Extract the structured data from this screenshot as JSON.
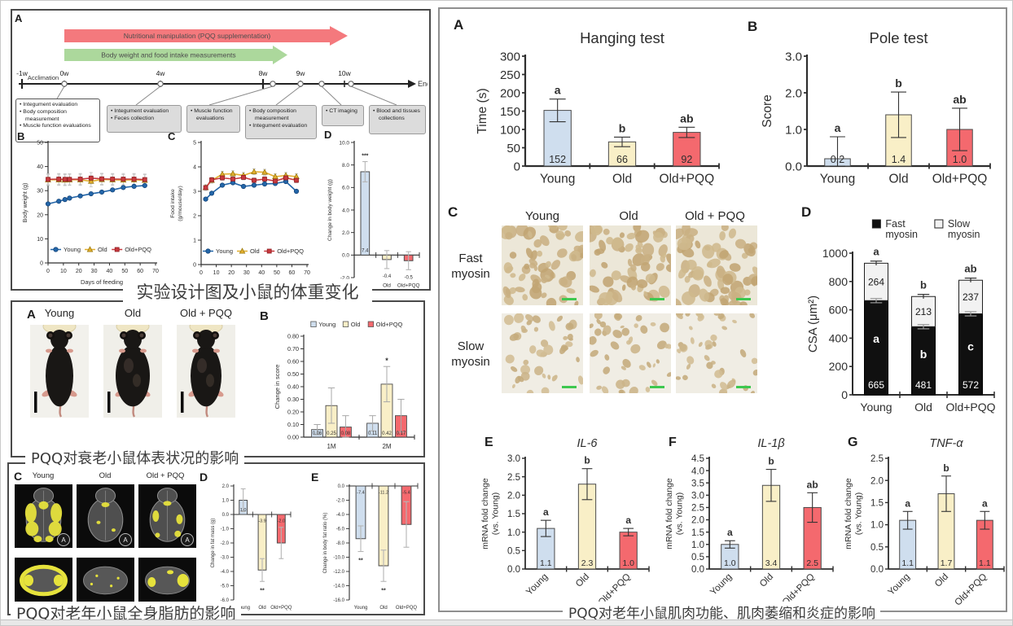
{
  "palette": {
    "bar_fill": [
      "#cfdeee",
      "#f9efc7",
      "#f4696e"
    ],
    "bar_stroke": "#4a4a4a",
    "line_colors": [
      "#2366a9",
      "#e2ae2e",
      "#c8393e"
    ],
    "line_strokes": [
      "#17477c",
      "#9a7a10",
      "#8f1f23"
    ],
    "arrow_red": "#f4797d",
    "arrow_green": "#acd89c",
    "stacked_fast": "#101010",
    "stacked_slow": "#f2f2f2",
    "scalebar_green": "#3ec84f"
  },
  "groups": [
    "Young",
    "Old",
    "Old+PQQ"
  ],
  "figures": {
    "design": {
      "panel_a": "A",
      "panel_b": "B",
      "panel_c": "C",
      "panel_d": "D",
      "caption": "实验设计图及小鼠的体重变化"
    },
    "appearance": {
      "panel_a": "A",
      "panel_b": "B",
      "photo_labels": [
        "Young",
        "Old",
        "Old + PQQ"
      ],
      "caption": "PQQ对衰老小鼠体表状况的影响"
    },
    "fat": {
      "panel_c": "C",
      "panel_d": "D",
      "panel_e": "E",
      "ct_labels": [
        "Young",
        "Old",
        "Old + PQQ"
      ],
      "ct_inset": "A",
      "caption": "PQQ对老年小鼠全身脂肪的影响"
    },
    "muscle": {
      "panel_a": "A",
      "panel_b": "B",
      "panel_c": "C",
      "panel_d": "D",
      "panel_e": "E",
      "panel_f": "F",
      "panel_g": "G",
      "col_labels": [
        "Young",
        "Old",
        "Old + PQQ"
      ],
      "row_labels": [
        [
          "Fast",
          "myosin"
        ],
        [
          "Slow",
          "myosin"
        ]
      ],
      "caption": "PQQ对老年小鼠肌肉功能、肌肉萎缩和炎症的影响"
    }
  },
  "timeline": {
    "arrows": [
      {
        "label": "Nutritional manipulation (PQQ supplementation)",
        "color": "#f4797d"
      },
      {
        "label": "Body weight and food intake measurements",
        "color": "#acd89c"
      }
    ],
    "acclimation": "Acclimation",
    "ticks": [
      "-1w",
      "0w",
      "4w",
      "8w",
      "9w",
      "10w"
    ],
    "end_label": "End",
    "boxes": [
      {
        "items": [
          "Integument evaluation",
          "Body composition measurement",
          "Muscle function evaluations"
        ]
      },
      {
        "items": [
          "Integument evaluation",
          "Feces collection"
        ]
      },
      {
        "items": [
          "Muscle function evaluations"
        ]
      },
      {
        "items": [
          "Body composition measurement",
          "Integument evaluation"
        ]
      },
      {
        "items": [
          "CT imaging"
        ]
      },
      {
        "items": [
          "Blood and tissues collections"
        ]
      }
    ]
  },
  "chart_data": [
    {
      "id": "fig1B",
      "type": "line",
      "xlabel": "Days of feeding",
      "ylabel": [
        "Body weight (g)"
      ],
      "xlim": [
        0,
        70
      ],
      "xstep": 10,
      "ylim": [
        0,
        50
      ],
      "ystep": 10,
      "ydec": 0,
      "legend": true,
      "x": [
        0,
        7,
        11,
        14,
        21,
        28,
        35,
        42,
        49,
        56,
        63
      ],
      "series": [
        {
          "name": "Young",
          "marker": "circle",
          "err": 0,
          "values": [
            24.5,
            25.6,
            26.3,
            26.9,
            27.8,
            28.7,
            29.4,
            30.3,
            31.3,
            31.8,
            32.1
          ]
        },
        {
          "name": "Old",
          "marker": "triangle",
          "err": 2.3,
          "values": [
            34.5,
            34.5,
            34.4,
            34.5,
            34.5,
            33.9,
            34.6,
            34.5,
            34.4,
            34.5,
            34.3
          ]
        },
        {
          "name": "Old+PQQ",
          "marker": "square",
          "err": 2.3,
          "values": [
            34.7,
            34.8,
            34.7,
            34.7,
            34.8,
            35.2,
            34.9,
            34.8,
            34.8,
            34.8,
            34.6
          ]
        }
      ]
    },
    {
      "id": "fig1C",
      "type": "line",
      "xlabel": "Days of feeding",
      "ylabel": [
        "Food intake",
        "(g/mouse/day)"
      ],
      "xlim": [
        0,
        70
      ],
      "xstep": 10,
      "ylim": [
        0,
        5
      ],
      "ystep": 1,
      "ydec": 0,
      "legend": true,
      "x": [
        3,
        7,
        14,
        21,
        28,
        35,
        42,
        49,
        56,
        63
      ],
      "series": [
        {
          "name": "Young",
          "marker": "circle",
          "err": 0,
          "values": [
            2.68,
            2.92,
            3.25,
            3.35,
            3.2,
            3.25,
            3.3,
            3.32,
            3.4,
            3.0
          ]
        },
        {
          "name": "Old",
          "marker": "triangle",
          "err": 0.12,
          "values": [
            3.15,
            3.45,
            3.7,
            3.72,
            3.65,
            3.8,
            3.78,
            3.6,
            3.65,
            3.6
          ]
        },
        {
          "name": "Old+PQQ",
          "marker": "square",
          "err": 0.1,
          "values": [
            3.15,
            3.47,
            3.55,
            3.5,
            3.57,
            3.45,
            3.5,
            3.42,
            3.55,
            3.45
          ]
        }
      ]
    },
    {
      "id": "fig1D",
      "type": "bar",
      "categories": [
        "Young",
        "Old",
        "Old+PQQ"
      ],
      "values": [
        7.4,
        -0.4,
        -0.5
      ],
      "errors": [
        0.9,
        0.8,
        0.8
      ],
      "sig": [
        "***",
        "",
        ""
      ],
      "value_labels": [
        "7.4",
        "-0.4",
        "-0.5"
      ],
      "neg_label": "below",
      "ylim": [
        -2,
        10
      ],
      "ystep": 2,
      "ydec": 1,
      "ylabel": [
        "Change in body weight (g)"
      ]
    },
    {
      "id": "fig2B",
      "type": "grouped_bar",
      "groups": [
        "1M",
        "2M"
      ],
      "ylim": [
        0,
        0.8
      ],
      "ystep": 0.1,
      "ydec": 2,
      "ylabel": [
        "Change in score"
      ],
      "legend": [
        "Young",
        "Old",
        "Old+PQQ"
      ],
      "series": [
        {
          "name": "Young",
          "values": [
            0.06,
            0.11
          ],
          "errors": [
            0.04,
            0.06
          ],
          "labels": [
            "0.06",
            "0.11"
          ],
          "sig": [
            "",
            ""
          ]
        },
        {
          "name": "Old",
          "values": [
            0.25,
            0.42
          ],
          "errors": [
            0.14,
            0.14
          ],
          "labels": [
            "0.25",
            "0.42"
          ],
          "sig": [
            "",
            "*"
          ]
        },
        {
          "name": "Old+PQQ",
          "values": [
            0.08,
            0.17
          ],
          "errors": [
            0.09,
            0.13
          ],
          "labels": [
            "0.08",
            "0.17"
          ],
          "sig": [
            "",
            ""
          ]
        }
      ]
    },
    {
      "id": "fig3D",
      "type": "bar",
      "categories": [
        "Young",
        "Old",
        "Old+PQQ"
      ],
      "values": [
        1.0,
        -3.9,
        -2.0
      ],
      "errors": [
        0.8,
        0.8,
        1.1
      ],
      "sig": [
        "",
        "**",
        ""
      ],
      "value_labels": [
        "1.0",
        "-3.9",
        "-2.0"
      ],
      "neg_label": "inside",
      "ylim": [
        -6,
        2
      ],
      "ystep": 1,
      "ydec": 1,
      "ylabel": [
        "Change in fat mass (g)"
      ]
    },
    {
      "id": "fig3E",
      "type": "bar",
      "categories": [
        "Young",
        "Old",
        "Old+PQQ"
      ],
      "values": [
        -7.4,
        -11.2,
        -5.4
      ],
      "errors": [
        1.8,
        2.2,
        3.2
      ],
      "sig": [
        "**",
        "**",
        ""
      ],
      "value_labels": [
        "-7.4",
        "-11.2",
        "-5.4"
      ],
      "neg_label": "inside",
      "ylim": [
        -16,
        0
      ],
      "ystep": 2,
      "ydec": 1,
      "ylabel": [
        "Change in body fat ratio (%)"
      ]
    },
    {
      "id": "fig4A",
      "type": "bar",
      "title": "Hanging test",
      "categories": [
        "Young",
        "Old",
        "Old+PQQ"
      ],
      "values": [
        152,
        66,
        92
      ],
      "errors": [
        31,
        13,
        14
      ],
      "letters": [
        "a",
        "b",
        "ab"
      ],
      "value_labels": [
        "152",
        "66",
        "92"
      ],
      "ylim": [
        0,
        300
      ],
      "ystep": 50,
      "ydec": 0,
      "ylabel": [
        "Time (s)"
      ]
    },
    {
      "id": "fig4B",
      "type": "bar",
      "title": "Pole test",
      "categories": [
        "Young",
        "Old",
        "Old+PQQ"
      ],
      "values": [
        0.2,
        1.4,
        1.0
      ],
      "errors": [
        0.6,
        0.62,
        0.58
      ],
      "letters": [
        "a",
        "b",
        "ab"
      ],
      "value_labels": [
        "0.2",
        "1.4",
        "1.0"
      ],
      "ylim": [
        0,
        3
      ],
      "ystep": 1,
      "ydec": 1,
      "ylabel": [
        "Score"
      ]
    },
    {
      "id": "fig4D",
      "type": "stacked_bar",
      "categories": [
        "Young",
        "Old",
        "Old+PQQ"
      ],
      "fast": [
        665,
        481,
        572
      ],
      "slow": [
        264,
        213,
        237
      ],
      "fast_labels": [
        "665",
        "481",
        "572"
      ],
      "slow_labels": [
        "264",
        "213",
        "237"
      ],
      "fast_letters": [
        "a",
        "b",
        "c"
      ],
      "letters": [
        "a",
        "b",
        "ab"
      ],
      "seg_err": 15,
      "top_err": 15,
      "ylim": [
        0,
        1000
      ],
      "ystep": 200,
      "ydec": 0,
      "ylabel": [
        "CSA (μm²)"
      ],
      "legend": [
        {
          "label": [
            "Fast",
            "myosin"
          ],
          "fill": "#101010"
        },
        {
          "label": [
            "Slow",
            "myosin"
          ],
          "fill": "#f2f2f2"
        }
      ]
    },
    {
      "id": "fig4E",
      "type": "bar",
      "title": "IL-6",
      "title_italic": true,
      "categories": [
        "Young",
        "Old",
        "Old+PQQ"
      ],
      "values": [
        1.1,
        2.3,
        1.0
      ],
      "errors": [
        0.22,
        0.42,
        0.1
      ],
      "letters": [
        "a",
        "b",
        "a"
      ],
      "value_labels": [
        "1.1",
        "2.3",
        "1.0"
      ],
      "ylim": [
        0,
        3
      ],
      "ystep": 0.5,
      "ydec": 1,
      "ylabel": [
        "mRNA fold change",
        "(vs. Young)"
      ]
    },
    {
      "id": "fig4F",
      "type": "bar",
      "title": "IL-1β",
      "title_italic": true,
      "categories": [
        "Young",
        "Old",
        "Old+PQQ"
      ],
      "values": [
        1.0,
        3.4,
        2.5
      ],
      "errors": [
        0.15,
        0.65,
        0.6
      ],
      "letters": [
        "a",
        "b",
        "ab"
      ],
      "value_labels": [
        "1.0",
        "3.4",
        "2.5"
      ],
      "ylim": [
        0,
        4.5
      ],
      "ystep": 0.5,
      "ydec": 1,
      "ylabel": [
        "mRNA fold change",
        "(vs. Young)"
      ]
    },
    {
      "id": "fig4G",
      "type": "bar",
      "title": "TNF-α",
      "title_italic": true,
      "categories": [
        "Young",
        "Old",
        "Old+PQQ"
      ],
      "values": [
        1.1,
        1.7,
        1.1
      ],
      "errors": [
        0.2,
        0.4,
        0.2
      ],
      "letters": [
        "a",
        "b",
        "a"
      ],
      "value_labels": [
        "1.1",
        "1.7",
        "1.1"
      ],
      "ylim": [
        0,
        2.5
      ],
      "ystep": 0.5,
      "ydec": 1,
      "ylabel": [
        "mRNA fold change",
        "(vs. Young)"
      ]
    }
  ]
}
